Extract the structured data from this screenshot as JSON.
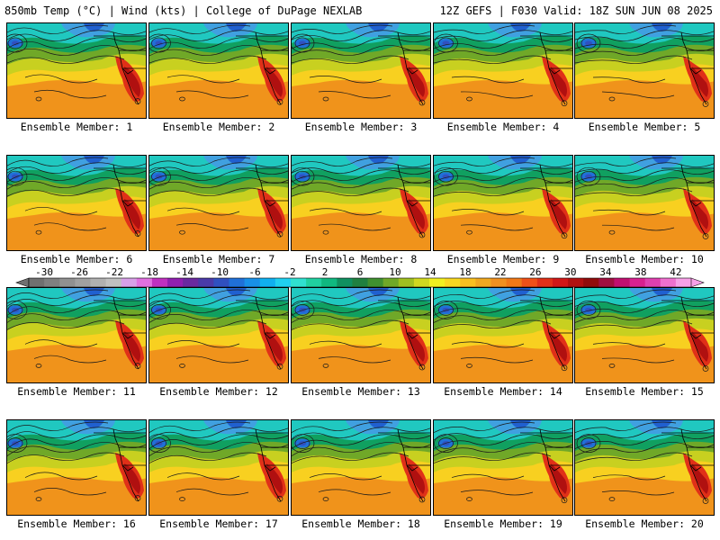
{
  "header": {
    "left": "850mb Temp (°C) | Wind (kts) | College of DuPage NEXLAB",
    "right": "12Z GEFS | F030 Valid: 18Z SUN JUN 08 2025"
  },
  "panels": [
    {
      "label": "Ensemble Member: 1"
    },
    {
      "label": "Ensemble Member: 2"
    },
    {
      "label": "Ensemble Member: 3"
    },
    {
      "label": "Ensemble Member: 4"
    },
    {
      "label": "Ensemble Member: 5"
    },
    {
      "label": "Ensemble Member: 6"
    },
    {
      "label": "Ensemble Member: 7"
    },
    {
      "label": "Ensemble Member: 8"
    },
    {
      "label": "Ensemble Member: 9"
    },
    {
      "label": "Ensemble Member: 10"
    },
    {
      "label": "Ensemble Member: 11"
    },
    {
      "label": "Ensemble Member: 12"
    },
    {
      "label": "Ensemble Member: 13"
    },
    {
      "label": "Ensemble Member: 14"
    },
    {
      "label": "Ensemble Member: 15"
    },
    {
      "label": "Ensemble Member: 16"
    },
    {
      "label": "Ensemble Member: 17"
    },
    {
      "label": "Ensemble Member: 18"
    },
    {
      "label": "Ensemble Member: 19"
    },
    {
      "label": "Ensemble Member: 20"
    }
  ],
  "colorbar": {
    "ticks": [
      "-30",
      "-26",
      "-22",
      "-18",
      "-14",
      "-10",
      "-6",
      "-2",
      "2",
      "6",
      "10",
      "14",
      "18",
      "22",
      "26",
      "30",
      "34",
      "38",
      "42"
    ],
    "colors": [
      "#707070",
      "#808080",
      "#909090",
      "#a0a0a0",
      "#b0b0b0",
      "#c0c0c0",
      "#d8a0e8",
      "#e070e0",
      "#c030c0",
      "#9020b0",
      "#6a2aa0",
      "#4a3aa8",
      "#3050c0",
      "#2070d8",
      "#1890e8",
      "#10b0f0",
      "#20d0f0",
      "#30e0d0",
      "#20d0a0",
      "#10b880",
      "#109060",
      "#208040",
      "#409030",
      "#70a828",
      "#a0c020",
      "#d0d820",
      "#f0f020",
      "#f8d820",
      "#f8c020",
      "#f0a820",
      "#f09020",
      "#f07818",
      "#f05018",
      "#e03018",
      "#d01818",
      "#b01010",
      "#900c0c",
      "#a01040",
      "#c01070",
      "#d82090",
      "#e040b0",
      "#f070d0",
      "#f8a0e8"
    ]
  }
}
